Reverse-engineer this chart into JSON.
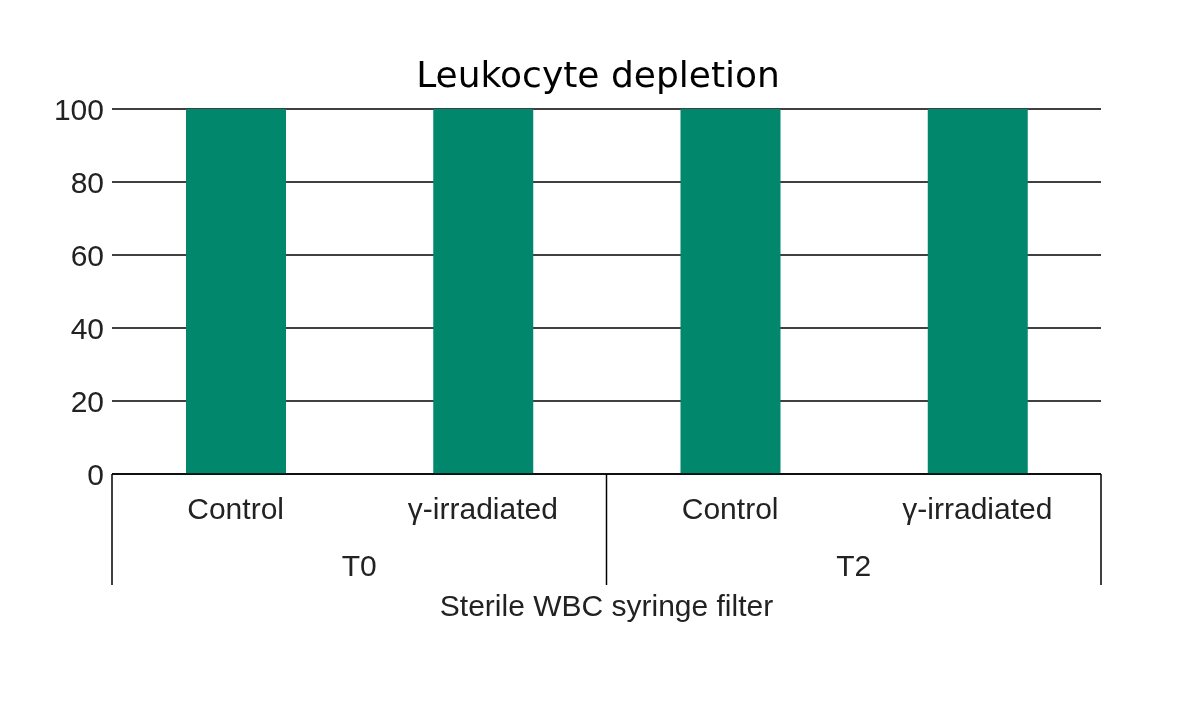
{
  "chart_data": {
    "type": "bar",
    "title": "Leukocyte depletion",
    "xlabel": "Sterile WBC syringe filter",
    "categories": [
      "Control",
      "γ-irradiated",
      "Control",
      "γ-irradiated"
    ],
    "values": [
      100,
      100,
      100,
      100
    ],
    "color": "#00876c",
    "ylim": [
      0,
      100
    ],
    "yticks": [
      0,
      20,
      40,
      60,
      80,
      100
    ],
    "grid": "y",
    "annotations": [
      "T0",
      "T2"
    ]
  }
}
